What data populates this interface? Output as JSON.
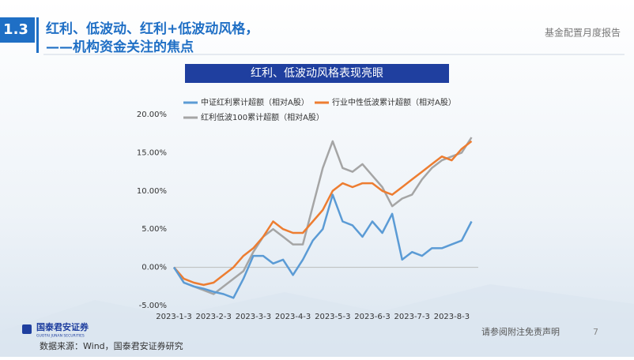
{
  "header": {
    "section": "1.3",
    "title_line1": "红利、低波动、红利+低波动风格，",
    "title_line2": "——机构资金关注的焦点",
    "report": "基金配置月度报告"
  },
  "chart_data": {
    "type": "line",
    "title": "红利、低波动风格表现亮眼",
    "categories": [
      "2023-1-3",
      null,
      null,
      null,
      "2023-2-3",
      null,
      null,
      null,
      "2023-3-3",
      null,
      null,
      null,
      "2023-4-3",
      null,
      null,
      null,
      "2023-5-3",
      null,
      null,
      null,
      "2023-6-3",
      null,
      null,
      null,
      "2023-7-3",
      null,
      null,
      null,
      "2023-8-3",
      null,
      null
    ],
    "series": [
      {
        "name": "中证红利累计超额（相对A股）",
        "color": "#5b9bd5",
        "values": [
          0,
          -2,
          -2.5,
          -2.8,
          -3.2,
          -3.5,
          -4,
          -1.5,
          1.5,
          1.5,
          0.5,
          1,
          -1,
          1,
          3.5,
          5,
          9.5,
          6,
          5.5,
          4,
          6,
          4.5,
          7,
          1,
          2,
          1.5,
          2.5,
          2.5,
          3,
          3.5,
          6
        ]
      },
      {
        "name": "行业中性低波累计超额（相对A股）",
        "color": "#ed7d31",
        "values": [
          0,
          -1.5,
          -2,
          -2.3,
          -2,
          -1,
          0,
          1.5,
          2.5,
          4,
          6,
          5,
          4.5,
          4.5,
          6,
          7.5,
          10,
          11,
          10.5,
          11,
          11,
          10,
          9.5,
          10.5,
          11.5,
          12.5,
          13.5,
          14.5,
          14,
          15.5,
          16.5
        ]
      },
      {
        "name": "红利低波100累计超额（相对A股）",
        "color": "#a5a5a5",
        "values": [
          0,
          -2,
          -2.5,
          -3,
          -3.5,
          -2.5,
          -1.5,
          -0.5,
          2,
          4,
          5,
          4,
          3,
          3,
          8,
          13,
          16.5,
          13,
          12.5,
          13.5,
          12,
          10.5,
          8,
          9,
          9.5,
          11.5,
          13,
          14,
          14.5,
          15,
          17
        ]
      }
    ],
    "ylim": [
      -5,
      20
    ],
    "yticks": [
      {
        "value": -5,
        "label": "-5.00%"
      },
      {
        "value": 0,
        "label": "0.00%"
      },
      {
        "value": 5,
        "label": "5.00%"
      },
      {
        "value": 10,
        "label": "10.00%"
      },
      {
        "value": 15,
        "label": "15.00%"
      },
      {
        "value": 20,
        "label": "20.00%"
      }
    ]
  },
  "footer": {
    "logo": "国泰君安证券",
    "logo_en": "GUOTAI JUNAN SECURITIES",
    "disclaimer": "请参阅附注免责声明",
    "page": "7",
    "source": "数据来源：Wind，国泰君安证券研究"
  }
}
